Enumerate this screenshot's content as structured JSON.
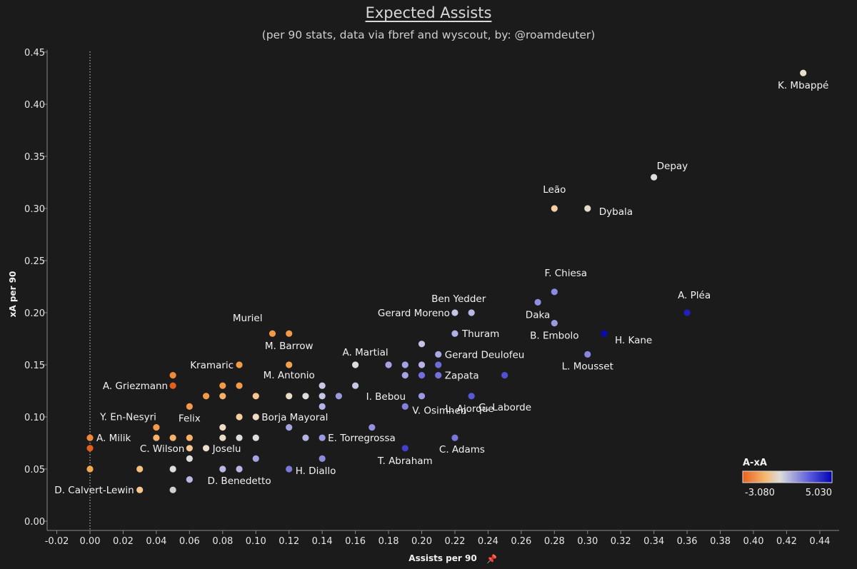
{
  "chart_data": {
    "type": "scatter",
    "title": "Expected Assists",
    "subtitle": "(per 90 stats, data via fbref and wyscout, by: @roamdeuter)",
    "xlabel": "Assists per 90",
    "ylabel": "xA per 90",
    "xlim": [
      -0.03,
      0.45
    ],
    "ylim": [
      -0.01,
      0.45
    ],
    "x_ticks": [
      -0.02,
      0.0,
      0.02,
      0.04,
      0.06,
      0.08,
      0.1,
      0.12,
      0.14,
      0.16,
      0.18,
      0.2,
      0.22,
      0.24,
      0.26,
      0.28,
      0.3,
      0.32,
      0.34,
      0.36,
      0.38,
      0.4,
      0.42,
      0.44
    ],
    "y_ticks": [
      0.0,
      0.05,
      0.1,
      0.15,
      0.2,
      0.25,
      0.3,
      0.35,
      0.4,
      0.45
    ],
    "x_tick_labels": [
      "-0.02",
      "0.00",
      "0.02",
      "0.04",
      "0.06",
      "0.08",
      "0.10",
      "0.12",
      "0.14",
      "0.16",
      "0.18",
      "0.20",
      "0.22",
      "0.24",
      "0.26",
      "0.28",
      "0.30",
      "0.32",
      "0.34",
      "0.36",
      "0.38",
      "0.40",
      "0.42",
      "0.44"
    ],
    "y_tick_labels": [
      "0.00",
      "0.05",
      "0.10",
      "0.15",
      "0.20",
      "0.25",
      "0.30",
      "0.35",
      "0.40",
      "0.45"
    ],
    "reference_line_x": 0.0,
    "grid": false,
    "color_legend": {
      "title": "A-xA",
      "min_label": "-3.080",
      "max_label": "5.030",
      "min": -3.08,
      "max": 5.03,
      "colors": [
        "#e8601c",
        "#f5b870",
        "#dcdcdc",
        "#5a5adc",
        "#0000b4"
      ],
      "placement": "bottom-right"
    },
    "points": [
      {
        "x": 0.43,
        "y": 0.43,
        "label": "K. Mbappé",
        "c": "#e8dfc8"
      },
      {
        "x": 0.34,
        "y": 0.33,
        "label": "Depay",
        "c": "#dedede"
      },
      {
        "x": 0.28,
        "y": 0.3,
        "label": "Leão",
        "c": "#f6cfa3"
      },
      {
        "x": 0.3,
        "y": 0.3,
        "label": "Dybala",
        "c": "#e4dccb"
      },
      {
        "x": 0.28,
        "y": 0.22,
        "label": "F. Chiesa",
        "c": "#8b8be3"
      },
      {
        "x": 0.36,
        "y": 0.2,
        "label": "A. Pléa",
        "c": "#2020c0"
      },
      {
        "x": 0.27,
        "y": 0.21,
        "label": "Daka",
        "c": "#8f8fe2"
      },
      {
        "x": 0.28,
        "y": 0.19,
        "label": "B. Embolo",
        "c": "#9a9ae0"
      },
      {
        "x": 0.31,
        "y": 0.18,
        "label": "H. Kane",
        "c": "#0a0ab0"
      },
      {
        "x": 0.3,
        "y": 0.16,
        "label": "L. Mousset",
        "c": "#8787e0"
      },
      {
        "x": 0.23,
        "y": 0.2,
        "label": "Ben Yedder",
        "c": "#b8b8e6"
      },
      {
        "x": 0.22,
        "y": 0.2,
        "label": "Gerard Moreno",
        "c": "#c4c4e6"
      },
      {
        "x": 0.22,
        "y": 0.18,
        "label": "Thuram",
        "c": "#b0b0e4"
      },
      {
        "x": 0.2,
        "y": 0.17,
        "label": "",
        "c": "#c4c4e6"
      },
      {
        "x": 0.21,
        "y": 0.16,
        "label": "Gerard Deulofeu",
        "c": "#a9a9e4"
      },
      {
        "x": 0.16,
        "y": 0.15,
        "label": "A. Martial",
        "c": "#dddddd"
      },
      {
        "x": 0.18,
        "y": 0.15,
        "label": "",
        "c": "#a4a4e4"
      },
      {
        "x": 0.19,
        "y": 0.15,
        "label": "",
        "c": "#a4a4e4"
      },
      {
        "x": 0.2,
        "y": 0.15,
        "label": "",
        "c": "#b4b4e6"
      },
      {
        "x": 0.21,
        "y": 0.15,
        "label": "",
        "c": "#6b6bda"
      },
      {
        "x": 0.19,
        "y": 0.14,
        "label": "",
        "c": "#a4a4e4"
      },
      {
        "x": 0.2,
        "y": 0.14,
        "label": "",
        "c": "#7070dc"
      },
      {
        "x": 0.21,
        "y": 0.14,
        "label": "Zapata",
        "c": "#7272dc"
      },
      {
        "x": 0.25,
        "y": 0.14,
        "label": "",
        "c": "#5050d4"
      },
      {
        "x": 0.23,
        "y": 0.12,
        "label": "G. Laborde",
        "c": "#5858d6"
      },
      {
        "x": 0.16,
        "y": 0.13,
        "label": "I. Bebou",
        "c": "#c6c6e6"
      },
      {
        "x": 0.14,
        "y": 0.13,
        "label": "",
        "c": "#c8c8e6"
      },
      {
        "x": 0.2,
        "y": 0.12,
        "label": "L. Ajorque",
        "c": "#9a9ae2"
      },
      {
        "x": 0.19,
        "y": 0.11,
        "label": "V. Osimhen",
        "c": "#8282de"
      },
      {
        "x": 0.17,
        "y": 0.09,
        "label": "",
        "c": "#9292e0"
      },
      {
        "x": 0.22,
        "y": 0.08,
        "label": "C. Adams",
        "c": "#7676dc"
      },
      {
        "x": 0.19,
        "y": 0.07,
        "label": "T. Abraham",
        "c": "#4040cc"
      },
      {
        "x": 0.14,
        "y": 0.08,
        "label": "E. Torregrossa",
        "c": "#9a9ae0"
      },
      {
        "x": 0.13,
        "y": 0.08,
        "label": "",
        "c": "#b4b4e4"
      },
      {
        "x": 0.14,
        "y": 0.06,
        "label": "",
        "c": "#8c8cde"
      },
      {
        "x": 0.12,
        "y": 0.05,
        "label": "H. Diallo",
        "c": "#7a7adc"
      },
      {
        "x": 0.14,
        "y": 0.12,
        "label": "",
        "c": "#c6c6e6"
      },
      {
        "x": 0.15,
        "y": 0.12,
        "label": "",
        "c": "#9a9ae0"
      },
      {
        "x": 0.14,
        "y": 0.11,
        "label": "",
        "c": "#b4b4e4"
      },
      {
        "x": 0.12,
        "y": 0.09,
        "label": "",
        "c": "#a4a4e2"
      },
      {
        "x": 0.1,
        "y": 0.06,
        "label": "",
        "c": "#a4a4e2"
      },
      {
        "x": 0.08,
        "y": 0.05,
        "label": "",
        "c": "#b8b8e4"
      },
      {
        "x": 0.09,
        "y": 0.05,
        "label": "D. Benedetto",
        "c": "#b8b8e4"
      },
      {
        "x": 0.06,
        "y": 0.04,
        "label": "",
        "c": "#b8b8e4"
      },
      {
        "x": 0.05,
        "y": 0.03,
        "label": "",
        "c": "#cfcfd6"
      },
      {
        "x": 0.12,
        "y": 0.15,
        "label": "M. Antonio",
        "c": "#f5a050"
      },
      {
        "x": 0.11,
        "y": 0.18,
        "label": "Muriel",
        "c": "#f39a48"
      },
      {
        "x": 0.12,
        "y": 0.18,
        "label": "M. Barrow",
        "c": "#f39a48"
      },
      {
        "x": 0.09,
        "y": 0.15,
        "label": "Kramaric",
        "c": "#f39a48"
      },
      {
        "x": 0.08,
        "y": 0.13,
        "label": "",
        "c": "#f39a48"
      },
      {
        "x": 0.09,
        "y": 0.13,
        "label": "",
        "c": "#f39a48"
      },
      {
        "x": 0.07,
        "y": 0.12,
        "label": "",
        "c": "#f39a48"
      },
      {
        "x": 0.08,
        "y": 0.12,
        "label": "",
        "c": "#f5b06a"
      },
      {
        "x": 0.1,
        "y": 0.12,
        "label": "",
        "c": "#f6c690"
      },
      {
        "x": 0.12,
        "y": 0.12,
        "label": "",
        "c": "#eadcc4"
      },
      {
        "x": 0.13,
        "y": 0.12,
        "label": "",
        "c": "#dddddd"
      },
      {
        "x": 0.06,
        "y": 0.11,
        "label": "Felix",
        "c": "#f39a48"
      },
      {
        "x": 0.05,
        "y": 0.14,
        "label": "",
        "c": "#f08a3a"
      },
      {
        "x": 0.05,
        "y": 0.13,
        "label": "A. Griezmann",
        "c": "#e0601c"
      },
      {
        "x": 0.09,
        "y": 0.1,
        "label": "",
        "c": "#f6cf9e"
      },
      {
        "x": 0.1,
        "y": 0.1,
        "label": "Borja Mayoral",
        "c": "#efdcc4"
      },
      {
        "x": 0.08,
        "y": 0.09,
        "label": "",
        "c": "#efdcc4"
      },
      {
        "x": 0.04,
        "y": 0.09,
        "label": "Y. En-Nesyri",
        "c": "#f39a48"
      },
      {
        "x": 0.04,
        "y": 0.08,
        "label": "",
        "c": "#f5b06a"
      },
      {
        "x": 0.05,
        "y": 0.08,
        "label": "",
        "c": "#f5b06a"
      },
      {
        "x": 0.06,
        "y": 0.08,
        "label": "",
        "c": "#f5b06a"
      },
      {
        "x": 0.08,
        "y": 0.08,
        "label": "",
        "c": "#eadcc4"
      },
      {
        "x": 0.09,
        "y": 0.08,
        "label": "",
        "c": "#dddddd"
      },
      {
        "x": 0.1,
        "y": 0.08,
        "label": "",
        "c": "#dddddd"
      },
      {
        "x": 0.06,
        "y": 0.07,
        "label": "C. Wilson",
        "c": "#f6c690"
      },
      {
        "x": 0.07,
        "y": 0.07,
        "label": "Joselu",
        "c": "#ece0cc"
      },
      {
        "x": 0.06,
        "y": 0.06,
        "label": "",
        "c": "#dddddd"
      },
      {
        "x": 0.05,
        "y": 0.05,
        "label": "",
        "c": "#dddddd"
      },
      {
        "x": 0.03,
        "y": 0.05,
        "label": "",
        "c": "#f6c080"
      },
      {
        "x": 0.03,
        "y": 0.03,
        "label": "D. Calvert-Lewin",
        "c": "#f6c690"
      },
      {
        "x": 0.0,
        "y": 0.08,
        "label": "A. Milik",
        "c": "#f08a3a"
      },
      {
        "x": 0.0,
        "y": 0.07,
        "label": "",
        "c": "#e0601c"
      },
      {
        "x": 0.0,
        "y": 0.05,
        "label": "",
        "c": "#f5a850"
      }
    ]
  }
}
